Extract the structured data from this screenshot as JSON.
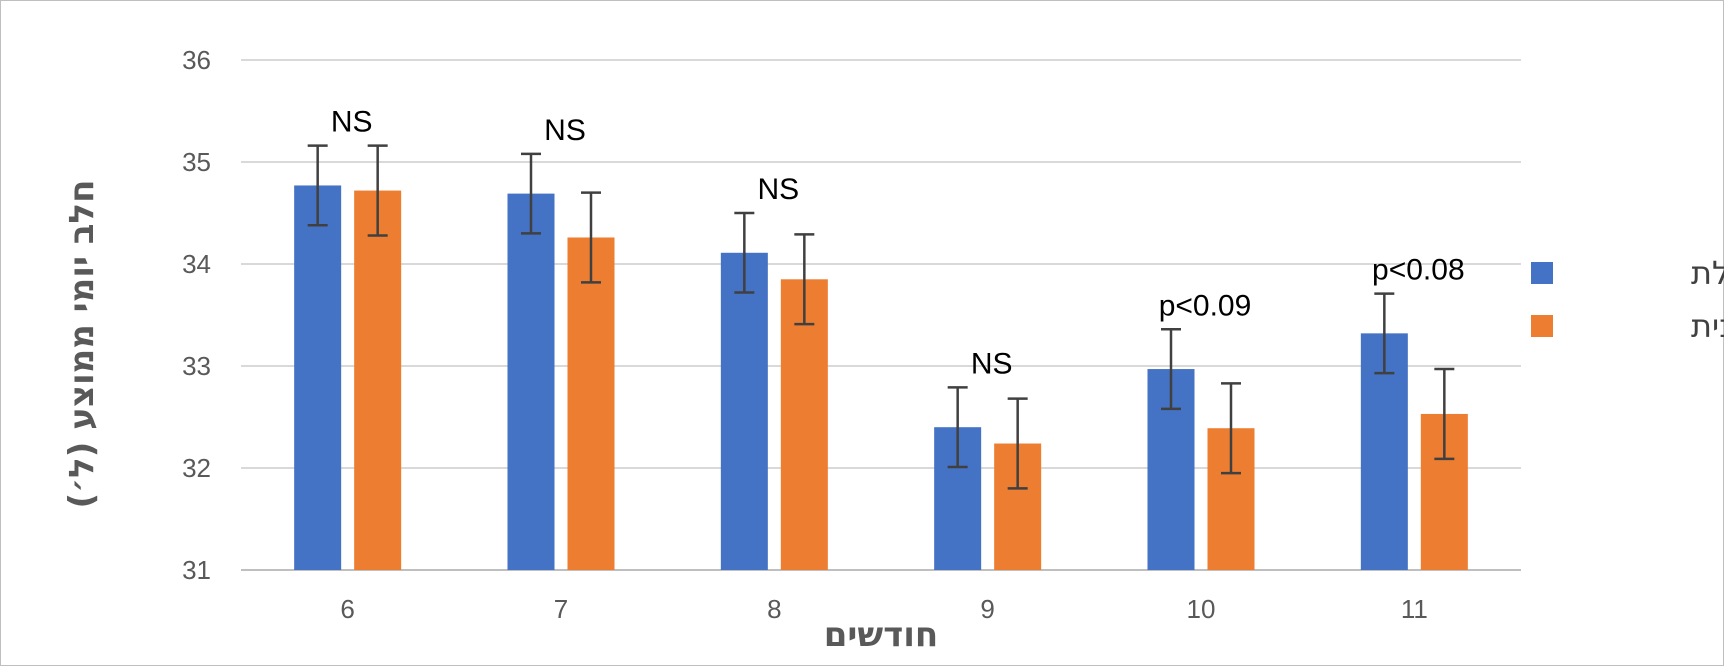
{
  "chart_data": {
    "type": "bar",
    "xlabel": "חודשים",
    "ylabel": "חלב יומי ממוצע (ל׳)",
    "categories": [
      "6",
      "7",
      "8",
      "9",
      "10",
      "11"
    ],
    "ylim": [
      31,
      36
    ],
    "yticks": [
      "31",
      "32",
      "33",
      "34",
      "35",
      "36"
    ],
    "grid": true,
    "legend_position": "right",
    "series": [
      {
        "name": "כוללת",
        "color": "#4472C4",
        "values": [
          34.77,
          34.69,
          34.11,
          32.4,
          32.97,
          33.32
        ],
        "error": [
          0.39,
          0.39,
          0.39,
          0.39,
          0.39,
          0.39
        ]
      },
      {
        "name": "מרחבית",
        "color": "#ED7D31",
        "values": [
          34.72,
          34.26,
          33.85,
          32.24,
          32.39,
          32.53
        ],
        "error": [
          0.44,
          0.44,
          0.44,
          0.44,
          0.44,
          0.44
        ]
      }
    ],
    "annotations": [
      "NS",
      "NS",
      "NS",
      "NS",
      "p<0.09",
      "p<0.08"
    ]
  }
}
